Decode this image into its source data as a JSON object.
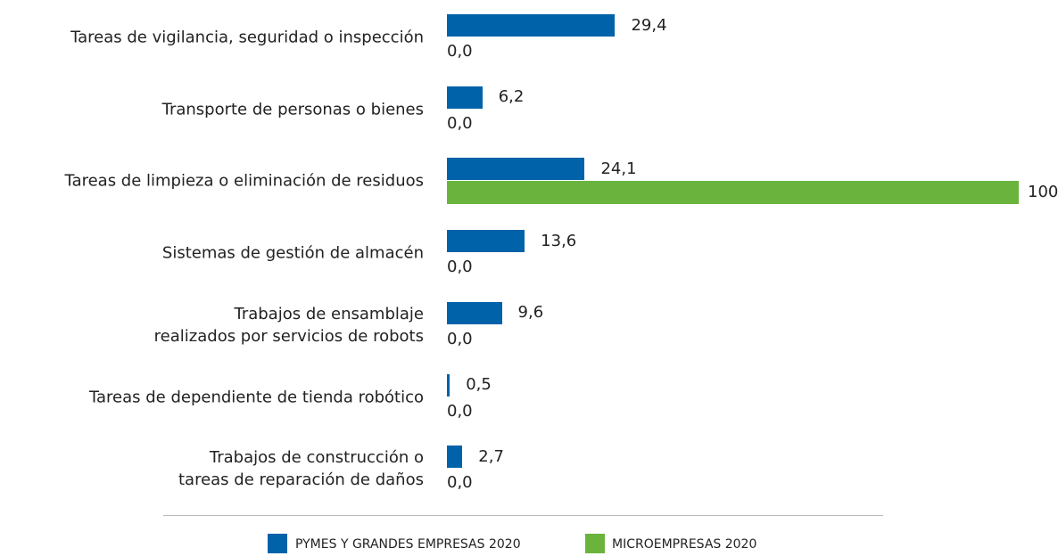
{
  "chart_data": {
    "type": "bar",
    "orientation": "horizontal",
    "categories": [
      "Tareas de vigilancia, seguridad o inspección",
      "Transporte de personas o bienes",
      "Tareas de limpieza o eliminación de residuos",
      "Sistemas de gestión de almacén",
      "Trabajos de ensamblaje\nrealizados por servicios de robots",
      "Tareas de dependiente de tienda robótico",
      "Trabajos de construcción o\ntareas de reparación de daños"
    ],
    "series": [
      {
        "name": "PYMES Y GRANDES EMPRESAS 2020",
        "color": "#0062a8",
        "values": [
          29.4,
          6.2,
          24.1,
          13.6,
          9.6,
          0.5,
          2.7
        ],
        "value_labels": [
          "29,4",
          "6,2",
          "24,1",
          "13,6",
          "9,6",
          "0,5",
          "2,7"
        ]
      },
      {
        "name": "MICROEMPRESAS 2020",
        "color": "#6ab43e",
        "values": [
          0,
          0,
          100,
          0,
          0,
          0,
          0
        ],
        "value_labels": [
          "0,0",
          "0,0",
          "100",
          "0,0",
          "0,0",
          "0,0",
          "0,0"
        ]
      }
    ],
    "xlim": [
      0,
      100
    ],
    "legend": "bottom"
  }
}
